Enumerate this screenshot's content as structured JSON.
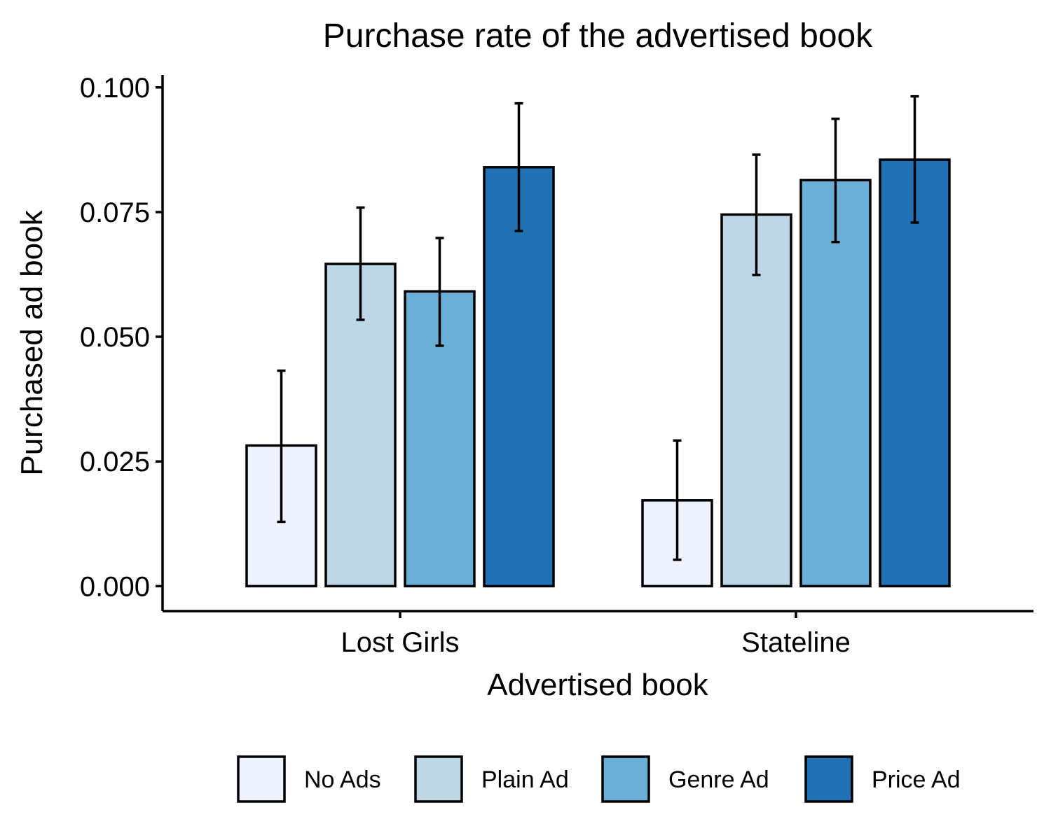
{
  "chart_data": {
    "type": "bar",
    "title": "Purchase rate of the advertised book",
    "xlabel": "Advertised book",
    "ylabel": "Purchased ad book",
    "categories": [
      "Lost Girls",
      "Stateline"
    ],
    "ylim": [
      -0.005,
      0.1025
    ],
    "yticks": [
      0.0,
      0.025,
      0.05,
      0.075,
      0.1
    ],
    "ytick_labels": [
      "0.000",
      "0.025",
      "0.050",
      "0.075",
      "0.100"
    ],
    "grid": false,
    "legend_position": "bottom",
    "series": [
      {
        "name": "No Ads",
        "color": "#eff3ff",
        "values": [
          0.0282,
          0.0172
        ],
        "err_low": [
          0.0129,
          0.0053
        ],
        "err_high": [
          0.0432,
          0.0292
        ]
      },
      {
        "name": "Plain Ad",
        "color": "#bdd7e7",
        "values": [
          0.0646,
          0.0745
        ],
        "err_low": [
          0.0534,
          0.0624
        ],
        "err_high": [
          0.0759,
          0.0865
        ]
      },
      {
        "name": "Genre Ad",
        "color": "#6baed6",
        "values": [
          0.0591,
          0.0814
        ],
        "err_low": [
          0.0482,
          0.069
        ],
        "err_high": [
          0.0698,
          0.0937
        ]
      },
      {
        "name": "Price Ad",
        "color": "#2171b5",
        "values": [
          0.084,
          0.0855
        ],
        "err_low": [
          0.0712,
          0.0729
        ],
        "err_high": [
          0.0968,
          0.0982
        ]
      }
    ]
  }
}
